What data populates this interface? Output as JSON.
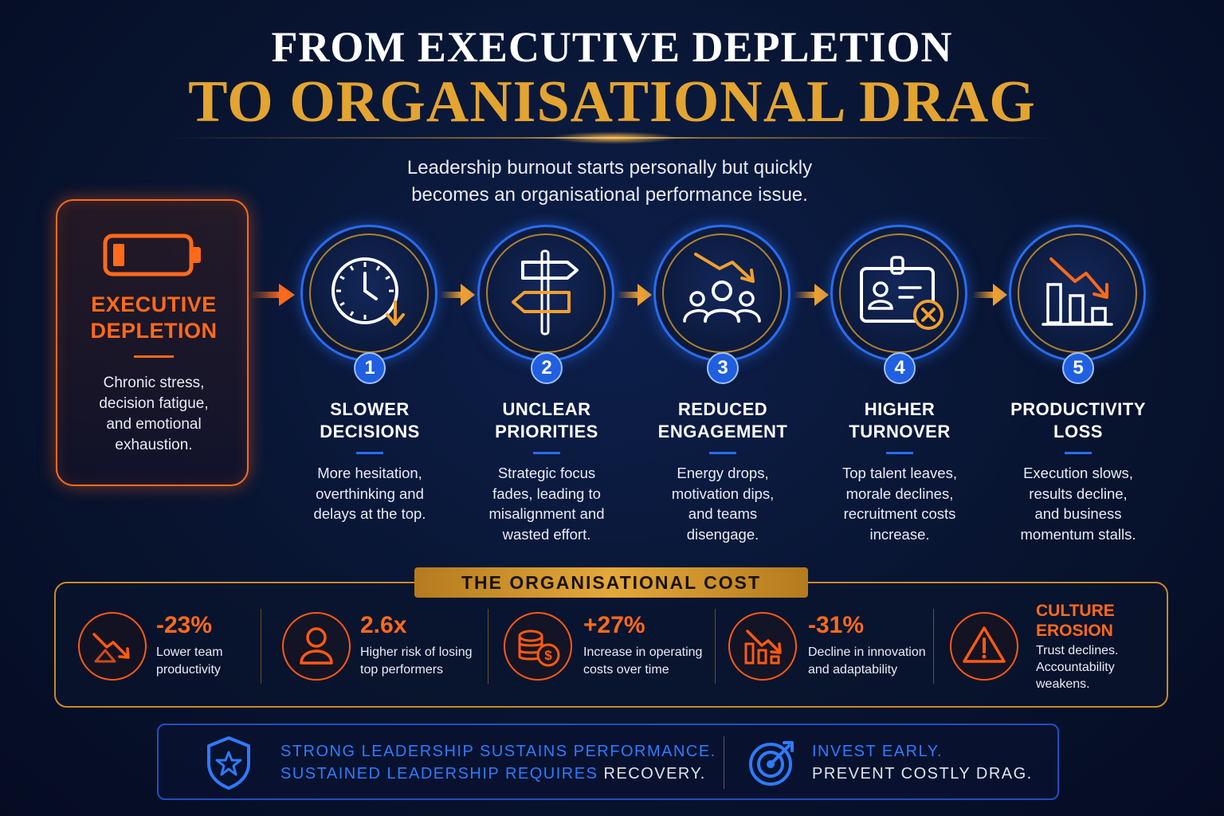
{
  "header": {
    "title_line1": "FROM EXECUTIVE DEPLETION",
    "title_line2": "TO ORGANISATIONAL DRAG",
    "subtitle_line1": "Leadership burnout starts personally but quickly",
    "subtitle_line2": "becomes an organisational performance issue."
  },
  "origin": {
    "icon": "battery-low-icon",
    "title_line1": "EXECUTIVE",
    "title_line2": "DEPLETION",
    "desc": [
      "Chronic stress,",
      "decision fatigue,",
      "and emotional",
      "exhaustion."
    ]
  },
  "steps": [
    {
      "number": "1",
      "icon": "clock-down-arrow-icon",
      "title": [
        "SLOWER",
        "DECISIONS"
      ],
      "desc": [
        "More hesitation,",
        "overthinking and",
        "delays at the top."
      ]
    },
    {
      "number": "2",
      "icon": "signpost-icon",
      "title": [
        "UNCLEAR",
        "PRIORITIES"
      ],
      "desc": [
        "Strategic focus",
        "fades, leading to",
        "misalignment and",
        "wasted effort."
      ]
    },
    {
      "number": "3",
      "icon": "team-decline-icon",
      "title": [
        "REDUCED",
        "ENGAGEMENT"
      ],
      "desc": [
        "Energy drops,",
        "motivation dips,",
        "and teams",
        "disengage."
      ]
    },
    {
      "number": "4",
      "icon": "id-badge-cancel-icon",
      "title": [
        "HIGHER",
        "TURNOVER"
      ],
      "desc": [
        "Top talent leaves,",
        "morale declines,",
        "recruitment costs",
        "increase."
      ]
    },
    {
      "number": "5",
      "icon": "bar-chart-decline-icon",
      "title": [
        "PRODUCTIVITY",
        "LOSS"
      ],
      "desc": [
        "Execution slows,",
        "results decline,",
        "and business",
        "momentum stalls."
      ]
    }
  ],
  "cost": {
    "label": "THE ORGANISATIONAL COST",
    "items": [
      {
        "icon": "trend-down-icon",
        "value": "-23%",
        "desc": [
          "Lower team",
          "productivity"
        ]
      },
      {
        "icon": "person-icon",
        "value": "2.6x",
        "desc": [
          "Higher risk of losing",
          "top performers"
        ]
      },
      {
        "icon": "coins-dollar-icon",
        "value": "+27%",
        "desc": [
          "Increase in operating",
          "costs over time"
        ]
      },
      {
        "icon": "bars-decline-icon",
        "value": "-31%",
        "desc": [
          "Decline in innovation",
          "and adaptability"
        ]
      },
      {
        "icon": "warning-triangle-icon",
        "value": [
          "CULTURE",
          "EROSION"
        ],
        "desc": [
          "Trust declines.",
          "Accountability",
          "weakens."
        ]
      }
    ]
  },
  "banner": {
    "shield_icon": "shield-star-icon",
    "left_line1": "STRONG LEADERSHIP SUSTAINS PERFORMANCE.",
    "left_line2_blue": "SUSTAINED LEADERSHIP REQUIRES ",
    "left_line2_light": "RECOVERY.",
    "target_icon": "target-icon",
    "right_line1": "INVEST EARLY.",
    "right_line2": "PREVENT COSTLY DRAG."
  },
  "colors": {
    "accent_orange": "#ff6a1a",
    "accent_gold": "#e3a431",
    "accent_blue": "#2a6cf0",
    "background": "#081430"
  }
}
